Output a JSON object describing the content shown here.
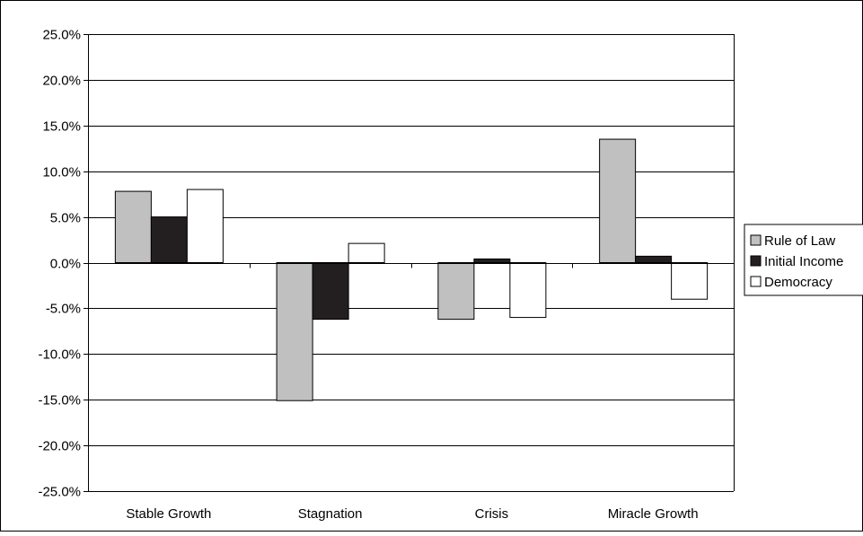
{
  "chart_data": {
    "type": "bar",
    "title": "",
    "xlabel": "",
    "ylabel": "",
    "categories": [
      "Stable Growth",
      "Stagnation",
      "Crisis",
      "Miracle Growth"
    ],
    "series": [
      {
        "name": "Rule of Law",
        "values": [
          7.8,
          -15.1,
          -6.2,
          13.5
        ],
        "color": "#c0c0c0"
      },
      {
        "name": "Initial Income",
        "values": [
          5.0,
          -6.2,
          0.4,
          0.7
        ],
        "color": "#231f20"
      },
      {
        "name": "Democracy",
        "values": [
          8.0,
          2.1,
          -6.0,
          -4.0
        ],
        "color": "#ffffff"
      }
    ],
    "ylim": [
      -25,
      25
    ],
    "yticks": [
      25,
      20,
      15,
      10,
      5,
      0,
      -5,
      -10,
      -15,
      -20,
      -25
    ],
    "ytick_labels": [
      "25.0%",
      "20.0%",
      "15.0%",
      "10.0%",
      "5.0%",
      "0.0%",
      "-5.0%",
      "-10.0%",
      "-15.0%",
      "-20.0%",
      "-25.0%"
    ],
    "grid": true,
    "legend_position": "right"
  }
}
